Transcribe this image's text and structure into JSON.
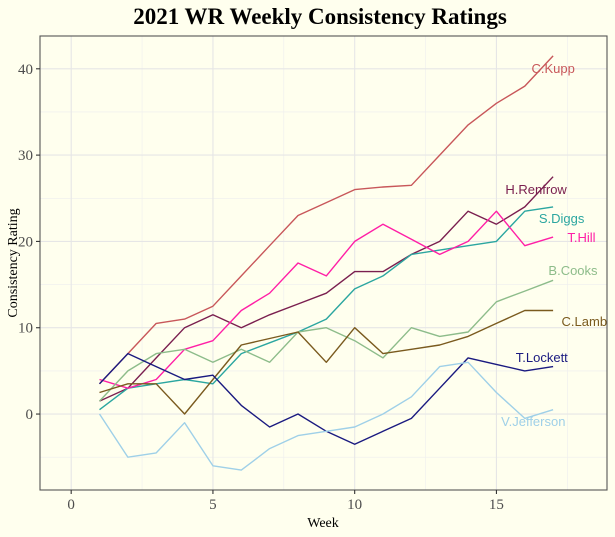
{
  "chart_data": {
    "type": "line",
    "title": "2021 WR Weekly Consistency Ratings",
    "xlabel": "Week",
    "ylabel": "Consistency Rating",
    "xlim": [
      -1.1,
      18.9
    ],
    "ylim": [
      -8.8,
      43.8
    ],
    "x_major_ticks": [
      0,
      5,
      10,
      15
    ],
    "x_minor_ticks": [
      2.5,
      7.5,
      12.5,
      17.5
    ],
    "y_major_ticks": [
      0,
      10,
      20,
      30,
      40
    ],
    "y_minor_ticks": [
      -5,
      5,
      15,
      25,
      35
    ],
    "x_tick_labels": [
      "0",
      "5",
      "10",
      "15"
    ],
    "y_tick_labels": [
      "0",
      "10",
      "20",
      "30",
      "40"
    ],
    "grid": true,
    "legend": "direct labels at line ends (right side)",
    "x": [
      1,
      2,
      3,
      4,
      5,
      6,
      7,
      8,
      9,
      10,
      11,
      12,
      13,
      14,
      15,
      16,
      17
    ],
    "series": [
      {
        "name": "C.Kupp",
        "color": "#C8575A",
        "label_pos": [
          17.0,
          40.1
        ],
        "values": [
          3.5,
          7,
          10.5,
          11,
          12.5,
          16,
          19.5,
          23,
          24.5,
          26,
          26.3,
          26.5,
          30,
          33.5,
          36,
          38,
          41.5
        ]
      },
      {
        "name": "H.Renfrow",
        "color": "#7A1F4F",
        "label_pos": [
          16.4,
          26.1
        ],
        "values": [
          1.5,
          3,
          6.5,
          10,
          11.5,
          10,
          11.5,
          12.75,
          14,
          16.5,
          16.5,
          18.5,
          20,
          23.5,
          22,
          24,
          27.5
        ]
      },
      {
        "name": "S.Diggs",
        "color": "#2BA6A0",
        "label_pos": [
          17.3,
          22.7
        ],
        "values": [
          0.5,
          3,
          3.5,
          4,
          3.5,
          7,
          8.25,
          9.5,
          11,
          14.5,
          16,
          18.5,
          19,
          19.5,
          20,
          23.5,
          24
        ]
      },
      {
        "name": "T.Hill",
        "color": "#FF1FA6",
        "label_pos": [
          18.0,
          20.5
        ],
        "values": [
          4,
          3,
          4,
          7.5,
          8.5,
          12,
          14,
          17.5,
          16,
          20,
          22,
          20.25,
          18.5,
          20,
          23.5,
          19.5,
          20.5
        ]
      },
      {
        "name": "B.Cooks",
        "color": "#8DBC8A",
        "label_pos": [
          17.7,
          16.7
        ],
        "values": [
          1.5,
          5,
          7,
          7.5,
          6,
          7.5,
          6,
          9.5,
          10,
          8.5,
          6.5,
          10,
          9,
          9.5,
          13,
          14.25,
          15.5
        ]
      },
      {
        "name": "C.Lamb",
        "color": "#7A5A1E",
        "label_pos": [
          18.1,
          10.8
        ],
        "values": [
          2.5,
          3.5,
          3.5,
          0,
          4,
          8,
          8.75,
          9.5,
          6,
          10,
          7,
          7.5,
          8,
          9,
          10.5,
          12,
          12
        ]
      },
      {
        "name": "T.Lockett",
        "color": "#1A1A80",
        "label_pos": [
          16.6,
          6.6
        ],
        "values": [
          3.5,
          7,
          5.5,
          4,
          4.5,
          1,
          -1.5,
          0,
          -2,
          -3.5,
          -2,
          -0.5,
          3,
          6.5,
          5.75,
          5,
          5.5
        ]
      },
      {
        "name": "V.Jefferson",
        "color": "#9FD0E8",
        "label_pos": [
          16.3,
          -0.8
        ],
        "values": [
          0,
          -5,
          -4.5,
          -1,
          -6,
          -6.5,
          -4,
          -2.5,
          -2,
          -1.5,
          0,
          2,
          5.5,
          6,
          2.5,
          -0.5,
          0.5
        ]
      }
    ]
  },
  "colors": {
    "background": "#FFFFEE",
    "grid": "#E6E6E6",
    "panel_border": "#555555",
    "tick_text": "#4D4D4D"
  }
}
